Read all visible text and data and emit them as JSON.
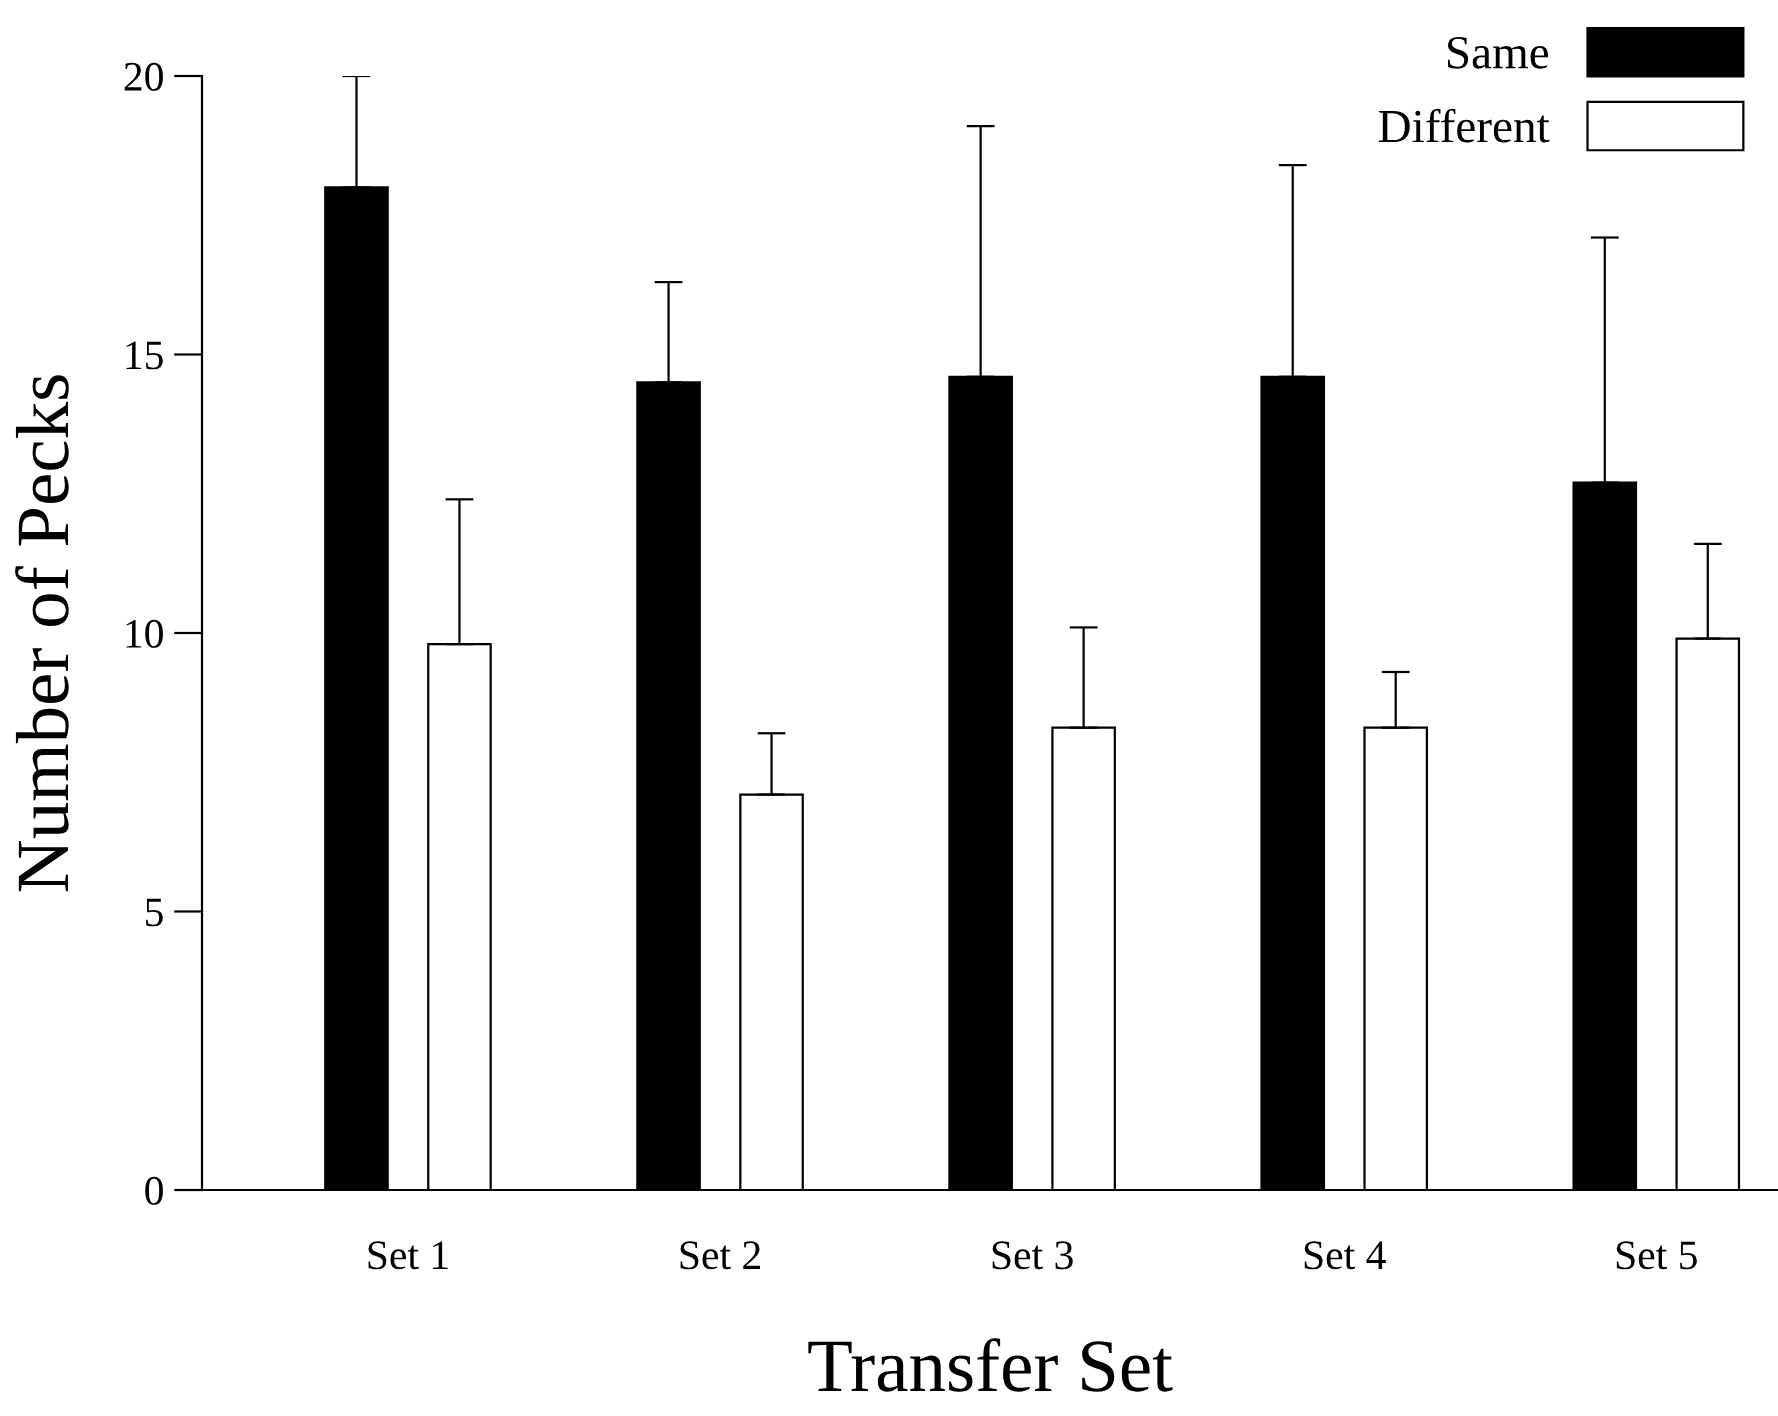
{
  "chart_data": {
    "type": "bar",
    "xlabel": "Transfer Set",
    "ylabel": "Number of Pecks",
    "categories": [
      "Set 1",
      "Set 2",
      "Set 3",
      "Set 4",
      "Set 5"
    ],
    "series": [
      {
        "name": "Same",
        "color": "#000000",
        "values": [
          18.0,
          14.5,
          14.6,
          14.6,
          12.7
        ],
        "errors": [
          [
            18.0,
            20.0
          ],
          [
            14.5,
            16.3
          ],
          [
            14.6,
            19.1
          ],
          [
            14.6,
            18.4
          ],
          [
            12.7,
            17.1
          ]
        ]
      },
      {
        "name": "Different",
        "color": "#ffffff",
        "values": [
          9.8,
          7.1,
          8.3,
          8.3,
          9.9
        ],
        "errors": [
          [
            9.8,
            12.4
          ],
          [
            7.1,
            8.2
          ],
          [
            8.3,
            10.1
          ],
          [
            8.3,
            9.3
          ],
          [
            9.9,
            11.6
          ]
        ]
      }
    ],
    "ylim": [
      0,
      20
    ],
    "yticks": [
      0,
      5,
      10,
      15,
      20
    ],
    "grid": false,
    "legend": "top right"
  }
}
